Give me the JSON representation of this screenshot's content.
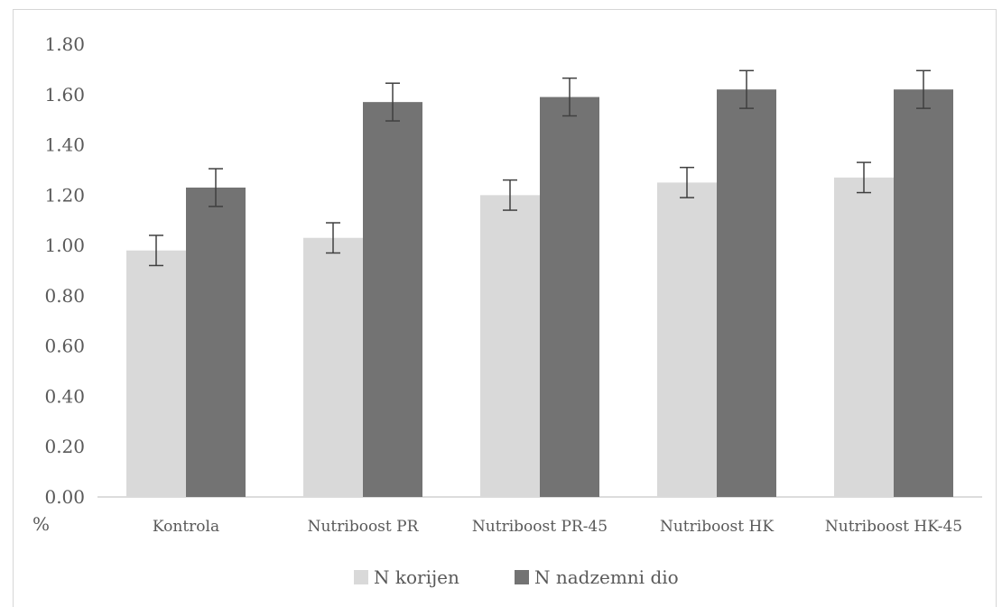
{
  "chart_data": {
    "type": "bar",
    "categories": [
      "Kontrola",
      "Nutriboost PR",
      "Nutriboost PR-45",
      "Nutriboost HK",
      "Nutriboost HK-45"
    ],
    "series": [
      {
        "name": "N korijen",
        "values": [
          0.98,
          1.03,
          1.2,
          1.25,
          1.27
        ],
        "errors": [
          0.06,
          0.06,
          0.06,
          0.06,
          0.06
        ]
      },
      {
        "name": "N nadzemni dio",
        "values": [
          1.23,
          1.57,
          1.59,
          1.62,
          1.62
        ],
        "errors": [
          0.075,
          0.075,
          0.075,
          0.075,
          0.075
        ]
      }
    ],
    "ylabel": "%",
    "ylim": [
      0,
      1.8
    ],
    "yticks": [
      "0.00",
      "0.20",
      "0.40",
      "0.60",
      "0.80",
      "1.00",
      "1.20",
      "1.40",
      "1.60",
      "1.80"
    ],
    "grid": false,
    "legend": "bottom",
    "colors": [
      "#d9d9d9",
      "#737373"
    ]
  }
}
